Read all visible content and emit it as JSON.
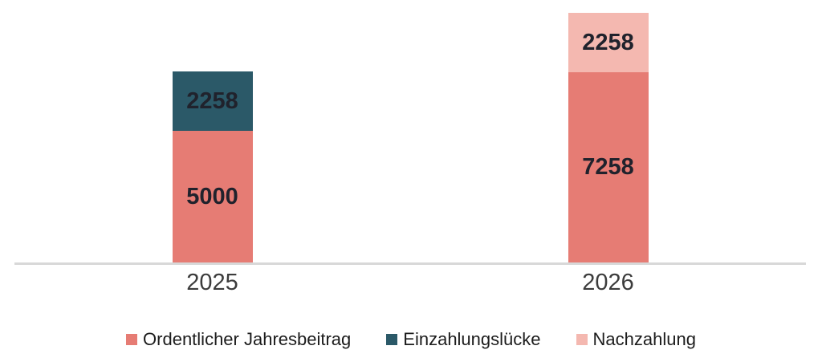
{
  "chart_data": {
    "type": "bar",
    "stacked": true,
    "title": "",
    "xlabel": "",
    "ylabel": "",
    "categories": [
      "2025",
      "2026"
    ],
    "series": [
      {
        "name": "Ordentlicher Jahresbeitrag",
        "color": "#e67c74",
        "values": [
          5000,
          7258
        ]
      },
      {
        "name": "Einzahlungslücke",
        "color": "#2b5968",
        "values": [
          2258,
          0
        ]
      },
      {
        "name": "Nachzahlung",
        "color": "#f4b8b0",
        "values": [
          0,
          2258
        ]
      }
    ],
    "bar_totals": [
      7258,
      9516
    ],
    "ylim": [
      0,
      10000
    ],
    "grid": false,
    "y_axis_visible": false,
    "bar_value_labels": true,
    "legend_position": "bottom",
    "axis_line_color": "#d8d8d8",
    "value_label_color": "#20222c",
    "tick_label_color": "#3c3c3c"
  }
}
